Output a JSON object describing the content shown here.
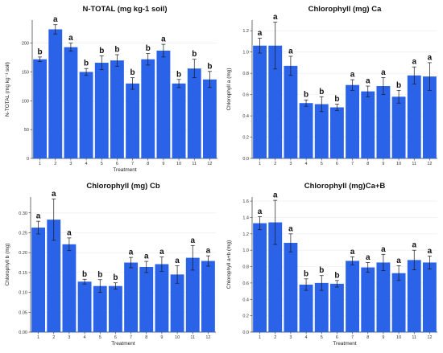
{
  "colors": {
    "bar": "#2a62e8",
    "error": "#1a1a1a",
    "grid": "#ececec",
    "axis": "#333333"
  },
  "chart_data": [
    {
      "type": "bar",
      "title": "N-TOTAL (mg kg-1 soil)",
      "xlabel": "Treatment",
      "ylabel": "N-TOTAL (mg kg⁻¹ soil)",
      "categories": [
        "1",
        "2",
        "3",
        "4",
        "5",
        "6",
        "7",
        "8",
        "9",
        "10",
        "11",
        "12"
      ],
      "values": [
        172,
        224,
        193,
        150,
        166,
        170,
        130,
        172,
        187,
        130,
        156,
        137
      ],
      "errors": [
        4,
        8,
        7,
        6,
        12,
        10,
        10,
        10,
        11,
        7,
        16,
        14
      ],
      "letters": [
        "b",
        "a",
        "a",
        "b",
        "b",
        "b",
        "b",
        "b",
        "a",
        "b",
        "b",
        "b"
      ],
      "ylim": [
        0,
        240
      ],
      "yticks": [
        0,
        50,
        100,
        150,
        200
      ],
      "grid": true
    },
    {
      "type": "bar",
      "title": "Chlorophyll (mg) Ca",
      "xlabel": "",
      "ylabel": "Chlorophyll a (mg)",
      "categories": [
        "1",
        "2",
        "3",
        "4",
        "5",
        "6",
        "7",
        "8",
        "9",
        "10",
        "11",
        "12"
      ],
      "values": [
        1.06,
        1.06,
        0.87,
        0.52,
        0.51,
        0.48,
        0.69,
        0.63,
        0.68,
        0.58,
        0.78,
        0.77
      ],
      "errors": [
        0.07,
        0.22,
        0.09,
        0.03,
        0.07,
        0.03,
        0.05,
        0.05,
        0.08,
        0.06,
        0.08,
        0.13
      ],
      "letters": [
        "a",
        "a",
        "a",
        "b",
        "b",
        "b",
        "a",
        "a",
        "a",
        "b",
        "a",
        "a"
      ],
      "ylim": [
        0,
        1.3
      ],
      "yticks": [
        0.0,
        0.2,
        0.4,
        0.6,
        0.8,
        1.0,
        1.2
      ],
      "grid": true
    },
    {
      "type": "bar",
      "title": "Chlorophyll (mg) Cb",
      "xlabel": "Treatment",
      "ylabel": "Chlorophyll b (mg)",
      "categories": [
        "1",
        "2",
        "3",
        "4",
        "5",
        "6",
        "7",
        "8",
        "9",
        "10",
        "11",
        "12"
      ],
      "values": [
        0.263,
        0.283,
        0.221,
        0.127,
        0.116,
        0.116,
        0.175,
        0.164,
        0.171,
        0.145,
        0.187,
        0.179
      ],
      "errors": [
        0.016,
        0.052,
        0.016,
        0.006,
        0.016,
        0.008,
        0.013,
        0.014,
        0.018,
        0.022,
        0.031,
        0.013
      ],
      "letters": [
        "a",
        "a",
        "a",
        "b",
        "b",
        "b",
        "a",
        "a",
        "a",
        "a",
        "a",
        "a"
      ],
      "ylim": [
        0,
        0.34
      ],
      "yticks": [
        0.0,
        0.05,
        0.1,
        0.15,
        0.2,
        0.25,
        0.3
      ],
      "grid": true
    },
    {
      "type": "bar",
      "title": "Chlorophyll (mg)Ca+B",
      "xlabel": "Treatment",
      "ylabel": "Chlorophyll a+b (mg)",
      "categories": [
        "1",
        "2",
        "3",
        "4",
        "5",
        "6",
        "7",
        "8",
        "9",
        "10",
        "11",
        "12"
      ],
      "values": [
        1.33,
        1.34,
        1.09,
        0.58,
        0.6,
        0.59,
        0.87,
        0.79,
        0.85,
        0.72,
        0.88,
        0.85
      ],
      "errors": [
        0.08,
        0.27,
        0.11,
        0.07,
        0.09,
        0.04,
        0.05,
        0.06,
        0.1,
        0.09,
        0.12,
        0.08
      ],
      "letters": [
        "a",
        "a",
        "a",
        "b",
        "b",
        "b",
        "a",
        "a",
        "a",
        "a",
        "a",
        "a"
      ],
      "ylim": [
        0,
        1.65
      ],
      "yticks": [
        0.0,
        0.2,
        0.4,
        0.6,
        0.8,
        1.0,
        1.2,
        1.4,
        1.6
      ],
      "grid": true
    }
  ]
}
